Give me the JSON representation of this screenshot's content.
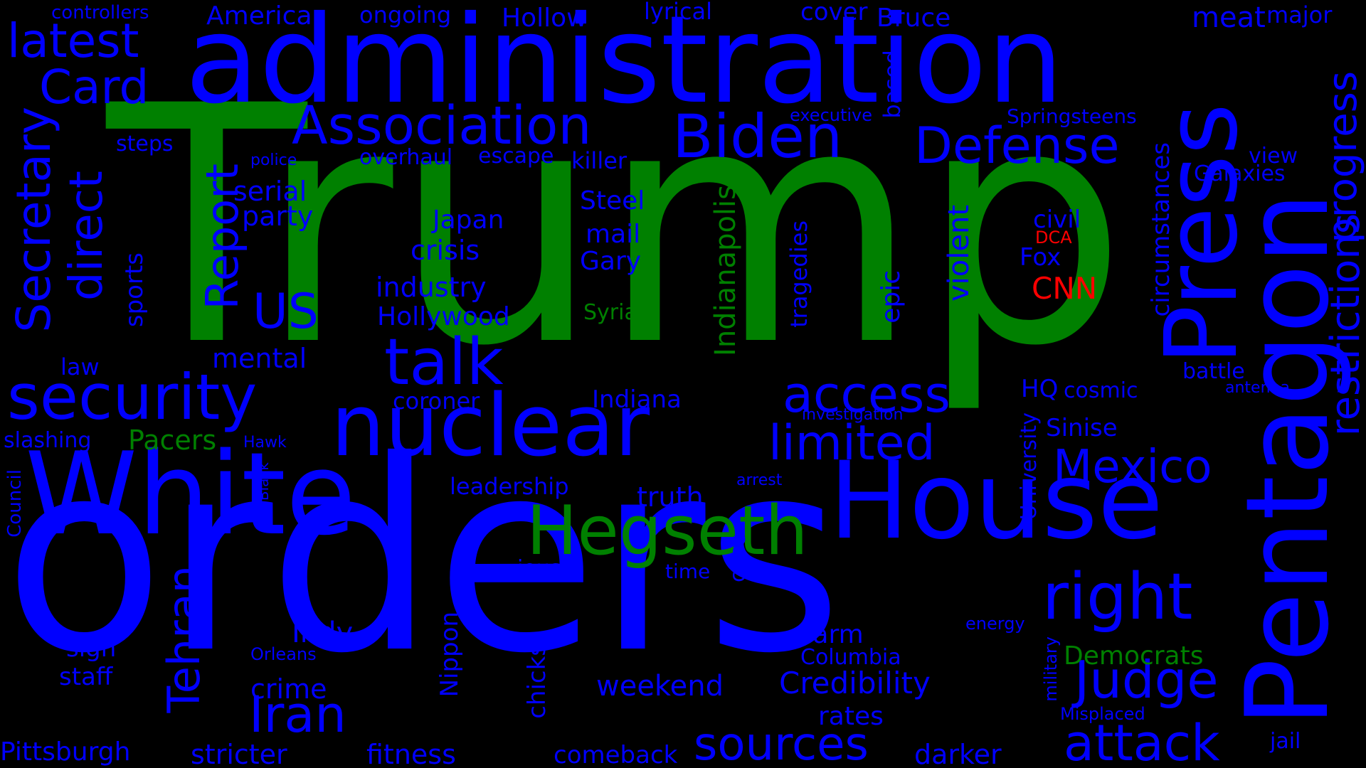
{
  "colors": {
    "background": "#000000",
    "blue": "#0000ff",
    "green": "#008000",
    "red": "#ff0000"
  },
  "words": [
    {
      "text": "Trump",
      "color": "green"
    },
    {
      "text": "orders",
      "color": "blue"
    },
    {
      "text": "administration",
      "color": "blue"
    },
    {
      "text": "White",
      "color": "blue"
    },
    {
      "text": "House",
      "color": "blue"
    },
    {
      "text": "nuclear",
      "color": "blue"
    },
    {
      "text": "Pentagon",
      "color": "blue"
    },
    {
      "text": "Press",
      "color": "blue"
    },
    {
      "text": "Hegseth",
      "color": "green"
    },
    {
      "text": "security",
      "color": "blue"
    },
    {
      "text": "Biden",
      "color": "blue"
    },
    {
      "text": "Association",
      "color": "blue"
    },
    {
      "text": "Defense",
      "color": "blue"
    },
    {
      "text": "access",
      "color": "blue"
    },
    {
      "text": "limited",
      "color": "blue"
    },
    {
      "text": "talk",
      "color": "blue"
    },
    {
      "text": "right",
      "color": "blue"
    },
    {
      "text": "Mexico",
      "color": "blue"
    },
    {
      "text": "Judge",
      "color": "blue"
    },
    {
      "text": "attack",
      "color": "blue"
    },
    {
      "text": "sources",
      "color": "blue"
    },
    {
      "text": "Iran",
      "color": "blue"
    },
    {
      "text": "latest",
      "color": "blue"
    },
    {
      "text": "Card",
      "color": "blue"
    },
    {
      "text": "Secretary",
      "color": "blue"
    },
    {
      "text": "direct",
      "color": "blue"
    },
    {
      "text": "Report",
      "color": "blue"
    },
    {
      "text": "US",
      "color": "blue"
    },
    {
      "text": "Tehran",
      "color": "blue"
    },
    {
      "text": "restrictions",
      "color": "blue"
    },
    {
      "text": "progress",
      "color": "blue"
    },
    {
      "text": "Credibility",
      "color": "blue"
    },
    {
      "text": "CNN",
      "color": "red"
    },
    {
      "text": "DCA",
      "color": "red"
    },
    {
      "text": "Pacers",
      "color": "green"
    },
    {
      "text": "Indianapolis",
      "color": "green"
    },
    {
      "text": "Syria",
      "color": "green"
    },
    {
      "text": "Democrats",
      "color": "green"
    },
    {
      "text": "controllers",
      "color": "blue"
    },
    {
      "text": "America",
      "color": "blue"
    },
    {
      "text": "ongoing",
      "color": "blue"
    },
    {
      "text": "Hollow",
      "color": "blue"
    },
    {
      "text": "lyrical",
      "color": "blue"
    },
    {
      "text": "cover",
      "color": "blue"
    },
    {
      "text": "Bruce",
      "color": "blue"
    },
    {
      "text": "meat",
      "color": "blue"
    },
    {
      "text": "major",
      "color": "blue"
    },
    {
      "text": "executive",
      "color": "blue"
    },
    {
      "text": "based",
      "color": "blue"
    },
    {
      "text": "Springsteens",
      "color": "blue"
    },
    {
      "text": "steps",
      "color": "blue"
    },
    {
      "text": "police",
      "color": "blue"
    },
    {
      "text": "overhaul",
      "color": "blue"
    },
    {
      "text": "escape",
      "color": "blue"
    },
    {
      "text": "killer",
      "color": "blue"
    },
    {
      "text": "view",
      "color": "blue"
    },
    {
      "text": "Galaxies",
      "color": "blue"
    },
    {
      "text": "serial",
      "color": "blue"
    },
    {
      "text": "party",
      "color": "blue"
    },
    {
      "text": "Steel",
      "color": "blue"
    },
    {
      "text": "Japan",
      "color": "blue"
    },
    {
      "text": "mail",
      "color": "blue"
    },
    {
      "text": "civil",
      "color": "blue"
    },
    {
      "text": "crisis",
      "color": "blue"
    },
    {
      "text": "Gary",
      "color": "blue"
    },
    {
      "text": "Fox",
      "color": "blue"
    },
    {
      "text": "circumstances",
      "color": "blue"
    },
    {
      "text": "industry",
      "color": "blue"
    },
    {
      "text": "sports",
      "color": "blue"
    },
    {
      "text": "Hollywood",
      "color": "blue"
    },
    {
      "text": "violent",
      "color": "blue"
    },
    {
      "text": "epic",
      "color": "blue"
    },
    {
      "text": "tragedies",
      "color": "blue"
    },
    {
      "text": "mental",
      "color": "blue"
    },
    {
      "text": "law",
      "color": "blue"
    },
    {
      "text": "coroner",
      "color": "blue"
    },
    {
      "text": "Indiana",
      "color": "blue"
    },
    {
      "text": "HQ",
      "color": "blue"
    },
    {
      "text": "cosmic",
      "color": "blue"
    },
    {
      "text": "battle",
      "color": "blue"
    },
    {
      "text": "antenna",
      "color": "blue"
    },
    {
      "text": "investigation",
      "color": "blue"
    },
    {
      "text": "Sinise",
      "color": "blue"
    },
    {
      "text": "slashing",
      "color": "blue"
    },
    {
      "text": "Hawk",
      "color": "blue"
    },
    {
      "text": "leadership",
      "color": "blue"
    },
    {
      "text": "arrest",
      "color": "blue"
    },
    {
      "text": "University",
      "color": "blue"
    },
    {
      "text": "Council",
      "color": "blue"
    },
    {
      "text": "Black",
      "color": "blue"
    },
    {
      "text": "truth",
      "color": "blue"
    },
    {
      "text": "case",
      "color": "blue"
    },
    {
      "text": "joust",
      "color": "blue"
    },
    {
      "text": "time",
      "color": "blue"
    },
    {
      "text": "Indy",
      "color": "blue"
    },
    {
      "text": "Farm",
      "color": "blue"
    },
    {
      "text": "Columbia",
      "color": "blue"
    },
    {
      "text": "energy",
      "color": "blue"
    },
    {
      "text": "sign",
      "color": "blue"
    },
    {
      "text": "Orleans",
      "color": "blue"
    },
    {
      "text": "Nippon",
      "color": "blue"
    },
    {
      "text": "staff",
      "color": "blue"
    },
    {
      "text": "chicks",
      "color": "blue"
    },
    {
      "text": "weekend",
      "color": "blue"
    },
    {
      "text": "military",
      "color": "blue"
    },
    {
      "text": "crime",
      "color": "blue"
    },
    {
      "text": "rates",
      "color": "blue"
    },
    {
      "text": "Misplaced",
      "color": "blue"
    },
    {
      "text": "Pittsburgh",
      "color": "blue"
    },
    {
      "text": "stricter",
      "color": "blue"
    },
    {
      "text": "fitness",
      "color": "blue"
    },
    {
      "text": "comeback",
      "color": "blue"
    },
    {
      "text": "darker",
      "color": "blue"
    },
    {
      "text": "jail",
      "color": "blue"
    }
  ]
}
